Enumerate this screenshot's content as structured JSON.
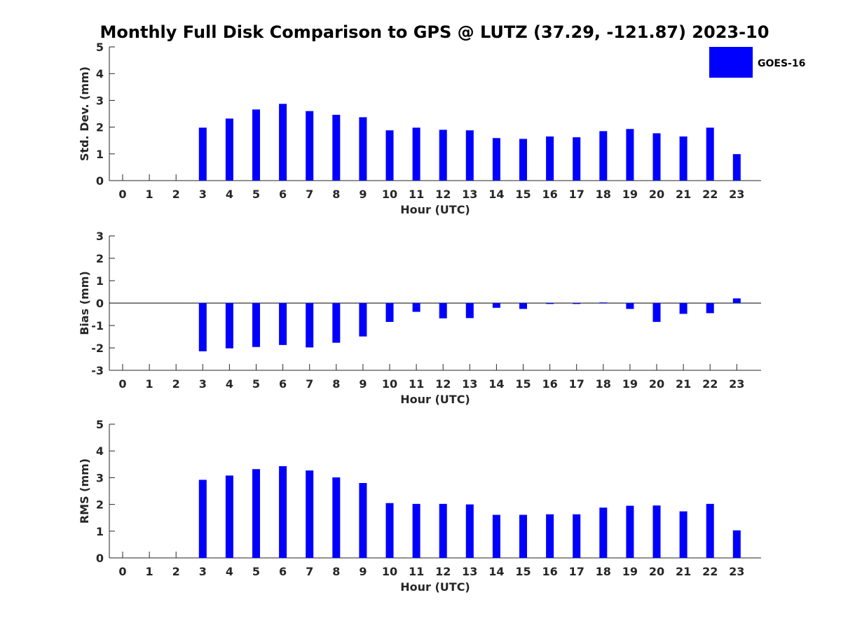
{
  "title": "Monthly Full Disk Comparison to GPS @ LUTZ (37.29, -121.87) 2023-10",
  "legend": {
    "label": "GOES-16",
    "color": "#0000ff",
    "position": "top-right"
  },
  "chart_data": [
    {
      "type": "bar",
      "ylabel": "Std. Dev. (mm)",
      "xlabel": "Hour (UTC)",
      "ylim": [
        0,
        5
      ],
      "yticks": [
        0,
        1,
        2,
        3,
        4,
        5
      ],
      "categories": [
        0,
        1,
        2,
        3,
        4,
        5,
        6,
        7,
        8,
        9,
        10,
        11,
        12,
        13,
        14,
        15,
        16,
        17,
        18,
        19,
        20,
        21,
        22,
        23
      ],
      "series": [
        {
          "name": "GOES-16",
          "color": "#0000ff",
          "values": [
            null,
            null,
            null,
            1.98,
            2.32,
            2.66,
            2.87,
            2.6,
            2.46,
            2.37,
            1.88,
            1.98,
            1.9,
            1.88,
            1.59,
            1.56,
            1.65,
            1.62,
            1.85,
            1.93,
            1.77,
            1.65,
            1.98,
            0.99
          ]
        }
      ],
      "grid": false
    },
    {
      "type": "bar",
      "ylabel": "Bias (mm)",
      "xlabel": "Hour (UTC)",
      "ylim": [
        -3,
        3
      ],
      "yticks": [
        -3,
        -2,
        -1,
        0,
        1,
        2,
        3
      ],
      "categories": [
        0,
        1,
        2,
        3,
        4,
        5,
        6,
        7,
        8,
        9,
        10,
        11,
        12,
        13,
        14,
        15,
        16,
        17,
        18,
        19,
        20,
        21,
        22,
        23
      ],
      "series": [
        {
          "name": "GOES-16",
          "color": "#0000ff",
          "values": [
            null,
            null,
            null,
            -2.15,
            -2.02,
            -1.96,
            -1.87,
            -1.98,
            -1.77,
            -1.49,
            -0.84,
            -0.39,
            -0.68,
            -0.67,
            -0.21,
            -0.26,
            -0.04,
            -0.04,
            0.03,
            -0.26,
            -0.84,
            -0.48,
            -0.45,
            0.21
          ]
        }
      ],
      "zero_line": true,
      "grid": false
    },
    {
      "type": "bar",
      "ylabel": "RMS (mm)",
      "xlabel": "Hour (UTC)",
      "ylim": [
        0,
        5
      ],
      "yticks": [
        0,
        1,
        2,
        3,
        4,
        5
      ],
      "categories": [
        0,
        1,
        2,
        3,
        4,
        5,
        6,
        7,
        8,
        9,
        10,
        11,
        12,
        13,
        14,
        15,
        16,
        17,
        18,
        19,
        20,
        21,
        22,
        23
      ],
      "series": [
        {
          "name": "GOES-16",
          "color": "#0000ff",
          "values": [
            null,
            null,
            null,
            2.92,
            3.08,
            3.32,
            3.43,
            3.27,
            3.01,
            2.8,
            2.05,
            2.02,
            2.02,
            2.0,
            1.61,
            1.61,
            1.63,
            1.63,
            1.88,
            1.95,
            1.96,
            1.74,
            2.02,
            1.03
          ]
        }
      ],
      "grid": false
    }
  ]
}
